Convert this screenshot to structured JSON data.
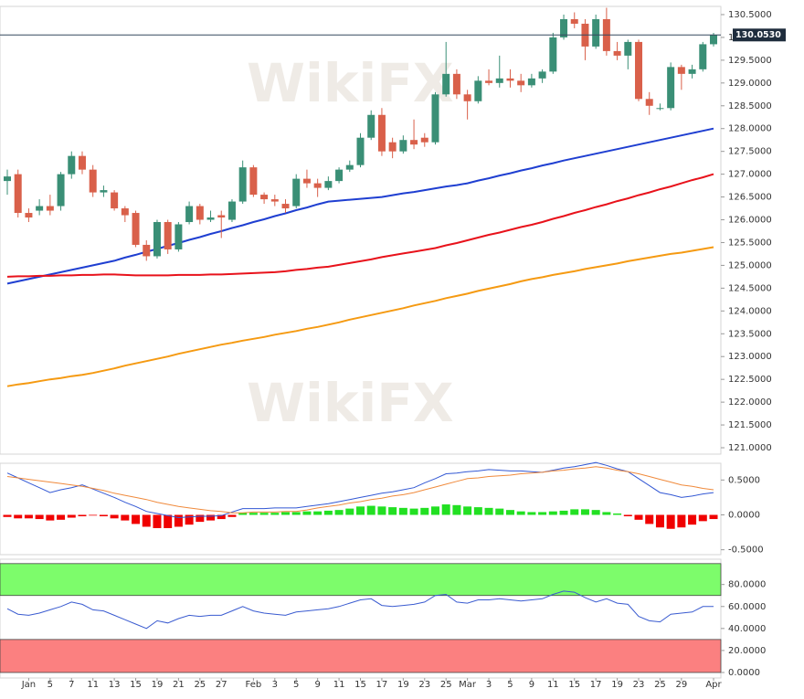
{
  "chart_data": [
    {
      "type": "candlestick",
      "watermark": "WikiFX",
      "up_color": "#3a8f76",
      "down_color": "#d9604a",
      "ylim": [
        120.86,
        130.68
      ],
      "yticks": [
        {
          "value": 121,
          "label": "121.0000"
        },
        {
          "value": 121.5,
          "label": "121.5000"
        },
        {
          "value": 122,
          "label": "122.0000"
        },
        {
          "value": 122.5,
          "label": "122.5000"
        },
        {
          "value": 123,
          "label": "123.0000"
        },
        {
          "value": 123.5,
          "label": "123.5000"
        },
        {
          "value": 124,
          "label": "124.0000"
        },
        {
          "value": 124.5,
          "label": "124.5000"
        },
        {
          "value": 125,
          "label": "125.0000"
        },
        {
          "value": 125.5,
          "label": "125.5000"
        },
        {
          "value": 126,
          "label": "126.0000"
        },
        {
          "value": 126.5,
          "label": "126.5000"
        },
        {
          "value": 127,
          "label": "127.0000"
        },
        {
          "value": 127.5,
          "label": "127.5000"
        },
        {
          "value": 128,
          "label": "128.0000"
        },
        {
          "value": 128.5,
          "label": "128.5000"
        },
        {
          "value": 129,
          "label": "129.0000"
        },
        {
          "value": 129.5,
          "label": "129.5000"
        },
        {
          "value": 130,
          "label": "130.0000"
        },
        {
          "value": 130.5,
          "label": "130.5000"
        }
      ],
      "last_price": {
        "value": 130.053,
        "label": "130.0530"
      },
      "categories": [
        null,
        null,
        "Jan",
        null,
        "5",
        null,
        "7",
        null,
        "11",
        null,
        "13",
        null,
        "15",
        null,
        "19",
        null,
        "21",
        null,
        "25",
        null,
        "27",
        null,
        null,
        "Feb",
        null,
        "3",
        null,
        "5",
        null,
        "9",
        null,
        "11",
        null,
        "15",
        null,
        "17",
        null,
        "19",
        null,
        "23",
        null,
        "25",
        null,
        "Mar",
        null,
        "3",
        null,
        "5",
        null,
        "9",
        null,
        "11",
        null,
        "15",
        null,
        "17",
        null,
        "19",
        null,
        "23",
        null,
        "25",
        null,
        "29",
        null,
        null,
        "Apr"
      ],
      "open": [
        126.85,
        127.0,
        126.15,
        126.2,
        126.3,
        126.3,
        127.0,
        127.4,
        127.1,
        126.6,
        126.6,
        126.25,
        126.15,
        125.45,
        125.2,
        125.95,
        125.35,
        125.95,
        126.3,
        126.0,
        126.1,
        126.0,
        126.4,
        127.15,
        126.55,
        126.45,
        126.35,
        126.3,
        126.9,
        126.8,
        126.7,
        126.85,
        127.1,
        127.2,
        127.8,
        128.3,
        127.7,
        127.5,
        127.75,
        127.8,
        127.7,
        128.75,
        129.2,
        128.75,
        128.6,
        129.05,
        129.0,
        129.1,
        129.05,
        128.95,
        129.1,
        129.25,
        130.0,
        130.4,
        130.3,
        129.8,
        130.4,
        129.7,
        129.6,
        129.9,
        128.65,
        128.45,
        128.45,
        129.35,
        129.2,
        129.3,
        129.85
      ],
      "high": [
        127.1,
        127.1,
        126.25,
        126.45,
        126.55,
        127.05,
        127.5,
        127.5,
        127.2,
        126.75,
        126.65,
        126.3,
        126.2,
        125.55,
        126.0,
        126.0,
        125.95,
        126.4,
        126.35,
        126.2,
        126.2,
        126.45,
        127.3,
        127.2,
        126.6,
        126.55,
        126.45,
        127.0,
        127.1,
        126.9,
        126.95,
        127.15,
        127.3,
        127.9,
        128.4,
        128.45,
        127.8,
        127.85,
        128.2,
        127.9,
        128.8,
        129.9,
        129.3,
        128.85,
        129.15,
        129.3,
        129.6,
        129.3,
        129.2,
        129.2,
        129.3,
        130.1,
        130.5,
        130.55,
        130.4,
        130.5,
        130.65,
        129.9,
        129.95,
        129.95,
        128.8,
        128.55,
        129.45,
        129.4,
        129.4,
        129.9,
        130.1
      ],
      "low": [
        126.55,
        126.05,
        125.95,
        126.1,
        126.1,
        126.2,
        126.9,
        127.0,
        126.5,
        126.5,
        126.2,
        125.95,
        125.4,
        125.1,
        125.15,
        125.25,
        125.3,
        125.9,
        125.9,
        125.95,
        125.6,
        125.95,
        126.35,
        126.5,
        126.35,
        126.3,
        126.15,
        126.25,
        126.7,
        126.5,
        126.65,
        126.8,
        127.05,
        127.15,
        127.75,
        127.4,
        127.35,
        127.45,
        127.55,
        127.6,
        127.65,
        128.7,
        128.65,
        128.2,
        128.55,
        128.95,
        128.9,
        128.9,
        128.8,
        128.9,
        129.0,
        129.2,
        129.95,
        130.2,
        129.5,
        129.75,
        129.6,
        129.5,
        129.3,
        128.6,
        128.3,
        128.4,
        128.4,
        128.85,
        129.1,
        129.25,
        129.8
      ],
      "close": [
        126.95,
        126.15,
        126.05,
        126.3,
        126.2,
        127.0,
        127.4,
        127.1,
        126.6,
        126.65,
        126.25,
        126.1,
        125.45,
        125.2,
        125.95,
        125.35,
        125.9,
        126.3,
        126.0,
        126.05,
        126.05,
        126.4,
        127.15,
        126.55,
        126.45,
        126.4,
        126.25,
        126.9,
        126.8,
        126.7,
        126.85,
        127.1,
        127.2,
        127.8,
        128.3,
        127.5,
        127.5,
        127.75,
        127.65,
        127.7,
        128.75,
        129.2,
        128.75,
        128.6,
        129.05,
        129.0,
        129.1,
        129.05,
        128.95,
        129.1,
        129.25,
        130.0,
        130.4,
        130.3,
        129.8,
        130.4,
        129.7,
        129.6,
        129.9,
        128.65,
        128.5,
        128.45,
        129.35,
        129.2,
        129.3,
        129.85,
        130.05
      ],
      "overlays": [
        {
          "color": "#1f3fd1",
          "values": [
            124.6,
            124.65,
            124.7,
            124.75,
            124.8,
            124.85,
            124.9,
            124.95,
            125.0,
            125.05,
            125.1,
            125.17,
            125.23,
            125.3,
            125.36,
            125.43,
            125.49,
            125.56,
            125.62,
            125.69,
            125.75,
            125.82,
            125.88,
            125.95,
            126.01,
            126.08,
            126.14,
            126.21,
            126.27,
            126.34,
            126.4,
            126.42,
            126.44,
            126.46,
            126.48,
            126.5,
            126.54,
            126.58,
            126.61,
            126.65,
            126.69,
            126.73,
            126.76,
            126.8,
            126.86,
            126.91,
            126.97,
            127.02,
            127.08,
            127.13,
            127.19,
            127.24,
            127.3,
            127.35,
            127.4,
            127.45,
            127.5,
            127.55,
            127.6,
            127.65,
            127.7,
            127.75,
            127.8,
            127.85,
            127.9,
            127.95,
            128.0
          ]
        },
        {
          "color": "#e8121b",
          "values": [
            124.75,
            124.76,
            124.76,
            124.77,
            124.77,
            124.78,
            124.78,
            124.79,
            124.79,
            124.8,
            124.8,
            124.79,
            124.78,
            124.78,
            124.78,
            124.78,
            124.79,
            124.79,
            124.79,
            124.8,
            124.8,
            124.81,
            124.82,
            124.83,
            124.84,
            124.85,
            124.87,
            124.9,
            124.92,
            124.95,
            124.97,
            125.01,
            125.05,
            125.09,
            125.13,
            125.18,
            125.22,
            125.26,
            125.3,
            125.34,
            125.38,
            125.44,
            125.49,
            125.55,
            125.61,
            125.67,
            125.72,
            125.78,
            125.84,
            125.89,
            125.95,
            126.02,
            126.08,
            126.15,
            126.21,
            126.28,
            126.34,
            126.41,
            126.47,
            126.54,
            126.6,
            126.67,
            126.73,
            126.8,
            126.87,
            126.93,
            127.0
          ]
        },
        {
          "color": "#f59a12",
          "values": [
            122.35,
            122.39,
            122.42,
            122.46,
            122.5,
            122.53,
            122.57,
            122.6,
            122.64,
            122.69,
            122.74,
            122.8,
            122.85,
            122.9,
            122.95,
            123.0,
            123.06,
            123.11,
            123.16,
            123.21,
            123.26,
            123.3,
            123.35,
            123.39,
            123.43,
            123.48,
            123.52,
            123.56,
            123.61,
            123.65,
            123.7,
            123.75,
            123.81,
            123.86,
            123.91,
            123.96,
            124.01,
            124.06,
            124.12,
            124.17,
            124.22,
            124.28,
            124.33,
            124.38,
            124.44,
            124.49,
            124.54,
            124.59,
            124.65,
            124.7,
            124.74,
            124.79,
            124.83,
            124.87,
            124.92,
            124.96,
            125.0,
            125.04,
            125.09,
            125.13,
            125.17,
            125.21,
            125.25,
            125.28,
            125.32,
            125.36,
            125.4
          ]
        }
      ]
    },
    {
      "type": "macd",
      "ylim": [
        -0.57,
        0.74
      ],
      "yticks": [
        {
          "value": 0.5,
          "label": "0.5000"
        },
        {
          "value": 0,
          "label": "0.0000"
        },
        {
          "value": -0.5,
          "label": "-0.5000"
        }
      ],
      "up_color": "#22e022",
      "down_color": "#f00000",
      "histogram": [
        -0.03,
        -0.05,
        -0.05,
        -0.06,
        -0.08,
        -0.07,
        -0.04,
        -0.02,
        -0.01,
        -0.02,
        -0.05,
        -0.08,
        -0.13,
        -0.17,
        -0.19,
        -0.19,
        -0.17,
        -0.14,
        -0.1,
        -0.08,
        -0.06,
        -0.03,
        0.03,
        0.03,
        0.03,
        0.03,
        0.04,
        0.04,
        0.05,
        0.05,
        0.06,
        0.07,
        0.09,
        0.12,
        0.13,
        0.12,
        0.11,
        0.1,
        0.09,
        0.1,
        0.12,
        0.15,
        0.14,
        0.12,
        0.11,
        0.1,
        0.09,
        0.07,
        0.05,
        0.04,
        0.04,
        0.05,
        0.06,
        0.08,
        0.08,
        0.07,
        0.04,
        0.02,
        -0.02,
        -0.07,
        -0.13,
        -0.18,
        -0.2,
        -0.18,
        -0.14,
        -0.09,
        -0.06
      ],
      "lines": [
        {
          "color": "#3358d4",
          "values": [
            0.6,
            0.53,
            0.46,
            0.39,
            0.32,
            0.36,
            0.39,
            0.43,
            0.37,
            0.31,
            0.25,
            0.18,
            0.12,
            0.05,
            0.02,
            -0.01,
            -0.04,
            -0.03,
            -0.02,
            -0.02,
            -0.01,
            0.04,
            0.09,
            0.09,
            0.09,
            0.1,
            0.1,
            0.1,
            0.12,
            0.14,
            0.16,
            0.19,
            0.22,
            0.25,
            0.28,
            0.31,
            0.33,
            0.36,
            0.39,
            0.46,
            0.52,
            0.59,
            0.6,
            0.62,
            0.63,
            0.65,
            0.64,
            0.63,
            0.63,
            0.62,
            0.61,
            0.64,
            0.67,
            0.69,
            0.72,
            0.75,
            0.71,
            0.66,
            0.62,
            0.52,
            0.42,
            0.32,
            0.29,
            0.25,
            0.27,
            0.3,
            0.32
          ]
        },
        {
          "color": "#f08a3c",
          "values": [
            0.55,
            0.53,
            0.51,
            0.49,
            0.47,
            0.45,
            0.43,
            0.41,
            0.38,
            0.35,
            0.31,
            0.28,
            0.25,
            0.22,
            0.18,
            0.15,
            0.12,
            0.1,
            0.08,
            0.06,
            0.05,
            0.03,
            0.03,
            0.04,
            0.04,
            0.04,
            0.05,
            0.05,
            0.07,
            0.1,
            0.12,
            0.14,
            0.17,
            0.19,
            0.22,
            0.24,
            0.27,
            0.29,
            0.32,
            0.36,
            0.4,
            0.44,
            0.48,
            0.52,
            0.53,
            0.55,
            0.56,
            0.57,
            0.59,
            0.6,
            0.61,
            0.63,
            0.64,
            0.66,
            0.67,
            0.69,
            0.67,
            0.64,
            0.62,
            0.59,
            0.55,
            0.51,
            0.47,
            0.43,
            0.41,
            0.38,
            0.36
          ]
        }
      ]
    },
    {
      "type": "rsi",
      "ylim": [
        -5,
        103
      ],
      "yticks": [
        {
          "value": 80,
          "label": "80.0000"
        },
        {
          "value": 60,
          "label": "60.0000"
        },
        {
          "value": 40,
          "label": "40.0000"
        },
        {
          "value": 20,
          "label": "20.0000"
        },
        {
          "value": 0,
          "label": "0.0000"
        }
      ],
      "zones": [
        {
          "from": 70,
          "to": 99,
          "color": "#7dfc6b"
        },
        {
          "from": 0,
          "to": 30,
          "color": "#fb8080"
        }
      ],
      "color": "#3a5bd0",
      "values": [
        58,
        53,
        52,
        54,
        57,
        60,
        64,
        62,
        57,
        56,
        52,
        48,
        44,
        40,
        47,
        45,
        49,
        52,
        51,
        52,
        52,
        56,
        60,
        56,
        54,
        53,
        52,
        55,
        56,
        57,
        58,
        60,
        63,
        66,
        67,
        61,
        60,
        61,
        62,
        64,
        70,
        71,
        64,
        63,
        66,
        66,
        67,
        66,
        65,
        66,
        67,
        71,
        74,
        73,
        68,
        64,
        67,
        63,
        62,
        51,
        47,
        46,
        53,
        54,
        55,
        60,
        60
      ]
    }
  ]
}
